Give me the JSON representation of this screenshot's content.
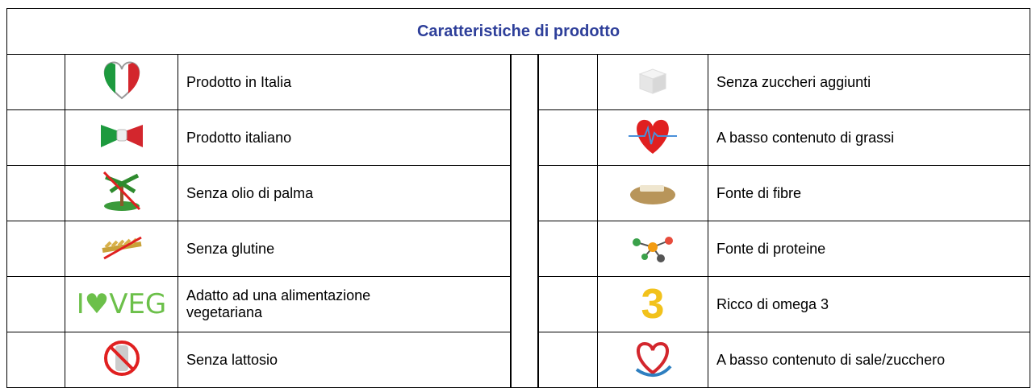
{
  "title": "Caratteristiche di prodotto",
  "rows": [
    {
      "left": {
        "label": [
          "Prodotto in Italia"
        ]
      },
      "right": {
        "label": [
          "Senza zuccheri aggiunti"
        ]
      }
    },
    {
      "left": {
        "label": [
          "Prodotto italiano"
        ]
      },
      "right": {
        "label": [
          "A basso contenuto di grassi"
        ]
      }
    },
    {
      "left": {
        "label": [
          "Senza olio di palma"
        ]
      },
      "right": {
        "label": [
          "Fonte di fibre"
        ]
      }
    },
    {
      "left": {
        "label": [
          "Senza glutine"
        ]
      },
      "right": {
        "label": [
          "Fonte di proteine"
        ]
      }
    },
    {
      "left": {
        "label": [
          "Adatto ad una alimentazione",
          "vegetariana"
        ],
        "icon_text": "I♥VEG"
      },
      "right": {
        "label": [
          "Ricco di omega 3"
        ],
        "icon_text": "3"
      }
    },
    {
      "left": {
        "label": [
          "Senza lattosio"
        ]
      },
      "right": {
        "label": [
          "A basso contenuto di sale/zucchero"
        ]
      }
    }
  ]
}
